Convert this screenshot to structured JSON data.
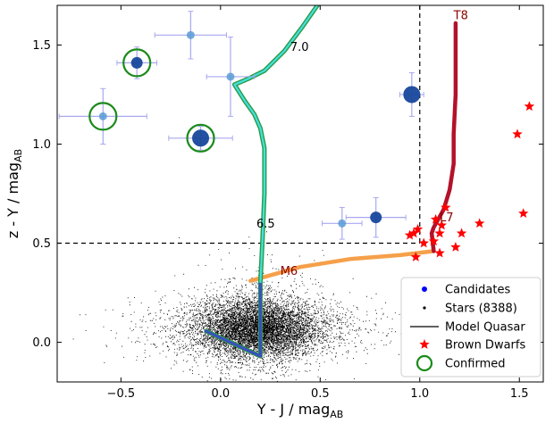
{
  "chart_data": {
    "type": "scatter",
    "title": "",
    "xlabel": "Y - J / mag",
    "xlabel_sub": "AB",
    "ylabel": "z - Y / mag",
    "ylabel_sub": "AB",
    "xlim": [
      -0.82,
      1.62
    ],
    "ylim": [
      -0.2,
      1.7
    ],
    "x_ticks": [
      -0.5,
      0.0,
      0.5,
      1.0,
      1.5
    ],
    "x_tick_labels": [
      "−0.5",
      "0.0",
      "0.5",
      "1.0",
      "1.5"
    ],
    "y_ticks": [
      0.0,
      0.5,
      1.0,
      1.5
    ],
    "y_tick_labels": [
      "0.0",
      "0.5",
      "1.0",
      "1.5"
    ],
    "grid": false,
    "legend_position": "bottom-right",
    "selection_cut": {
      "x": 1.0,
      "y": 0.5
    },
    "colors": {
      "candidate_light": "#5b9bd5",
      "candidate_dark": "#17479b",
      "candidate_error": "#a8a8f0",
      "confirmed_ring": "#1a8a1a",
      "brown_dwarf": "#ff0000",
      "stars": "#000000",
      "quasar_track_edge": "#2a9a4a",
      "quasar_track_fill": "#45e0dc",
      "quasar_track_low": "#3b4fc0",
      "brown_dwarf_track_late": "#b3122a",
      "brown_dwarf_track_early": "#f5a04a",
      "cut_line": "#000000"
    },
    "series": [
      {
        "name": "Candidates",
        "points": [
          {
            "x": -0.15,
            "y": 1.55,
            "xerr": 0.18,
            "yerr": 0.12,
            "size": "small",
            "confirmed": false
          },
          {
            "x": 0.05,
            "y": 1.34,
            "xerr": 0.12,
            "yerr": 0.2,
            "size": "small",
            "confirmed": false
          },
          {
            "x": -0.42,
            "y": 1.41,
            "xerr": 0.1,
            "yerr": 0.08,
            "size": "medium",
            "confirmed": true
          },
          {
            "x": -0.59,
            "y": 1.14,
            "xerr": 0.22,
            "yerr": 0.14,
            "size": "small",
            "confirmed": true
          },
          {
            "x": -0.1,
            "y": 1.03,
            "xerr": 0.16,
            "yerr": 0.06,
            "size": "large",
            "confirmed": true
          },
          {
            "x": 0.96,
            "y": 1.25,
            "xerr": 0.06,
            "yerr": 0.11,
            "size": "large",
            "confirmed": false
          },
          {
            "x": 0.78,
            "y": 0.63,
            "xerr": 0.15,
            "yerr": 0.1,
            "size": "medium",
            "confirmed": false
          },
          {
            "x": 0.61,
            "y": 0.6,
            "xerr": 0.1,
            "yerr": 0.08,
            "size": "small",
            "confirmed": false
          }
        ]
      },
      {
        "name": "Stars (8388)",
        "count": 8388,
        "distribution": {
          "x_center": 0.18,
          "y_center": 0.07
        }
      },
      {
        "name": "Model Quasar",
        "track": [
          {
            "x": -0.08,
            "y": 0.06
          },
          {
            "x": 0.2,
            "y": -0.07
          },
          {
            "x": 0.2,
            "y": 0.1
          },
          {
            "x": 0.2,
            "y": 0.3
          },
          {
            "x": 0.21,
            "y": 0.5
          },
          {
            "x": 0.22,
            "y": 0.75
          },
          {
            "x": 0.22,
            "y": 0.98
          },
          {
            "x": 0.2,
            "y": 1.08
          },
          {
            "x": 0.17,
            "y": 1.15
          },
          {
            "x": 0.12,
            "y": 1.22
          },
          {
            "x": 0.07,
            "y": 1.3
          },
          {
            "x": 0.14,
            "y": 1.33
          },
          {
            "x": 0.22,
            "y": 1.37
          },
          {
            "x": 0.32,
            "y": 1.47
          },
          {
            "x": 0.41,
            "y": 1.59
          },
          {
            "x": 0.5,
            "y": 1.72
          }
        ],
        "labels": [
          {
            "text": "7.0",
            "x": 0.35,
            "y": 1.47
          },
          {
            "text": "6.5",
            "x": 0.18,
            "y": 0.58
          }
        ]
      },
      {
        "name": "Brown Dwarfs",
        "points": [
          {
            "x": 1.55,
            "y": 1.19
          },
          {
            "x": 1.49,
            "y": 1.05
          },
          {
            "x": 1.52,
            "y": 0.65
          },
          {
            "x": 1.3,
            "y": 0.6
          },
          {
            "x": 1.21,
            "y": 0.55
          },
          {
            "x": 1.18,
            "y": 0.48
          },
          {
            "x": 1.13,
            "y": 0.68
          },
          {
            "x": 1.11,
            "y": 0.59
          },
          {
            "x": 1.08,
            "y": 0.62
          },
          {
            "x": 1.1,
            "y": 0.55
          },
          {
            "x": 1.07,
            "y": 0.51
          },
          {
            "x": 1.1,
            "y": 0.45
          },
          {
            "x": 0.97,
            "y": 0.55
          },
          {
            "x": 0.99,
            "y": 0.57
          },
          {
            "x": 1.02,
            "y": 0.5
          },
          {
            "x": 0.95,
            "y": 0.54
          },
          {
            "x": 0.98,
            "y": 0.43
          }
        ],
        "track": [
          {
            "x": 0.15,
            "y": 0.31
          },
          {
            "x": 0.4,
            "y": 0.38
          },
          {
            "x": 0.65,
            "y": 0.42
          },
          {
            "x": 0.9,
            "y": 0.44
          },
          {
            "x": 1.07,
            "y": 0.46
          },
          {
            "x": 1.06,
            "y": 0.55
          },
          {
            "x": 1.07,
            "y": 0.58
          },
          {
            "x": 1.12,
            "y": 0.67
          },
          {
            "x": 1.15,
            "y": 0.77
          },
          {
            "x": 1.17,
            "y": 0.9
          },
          {
            "x": 1.17,
            "y": 1.05
          },
          {
            "x": 1.18,
            "y": 1.25
          },
          {
            "x": 1.18,
            "y": 1.45
          },
          {
            "x": 1.18,
            "y": 1.61
          }
        ],
        "labels": [
          {
            "text": "M6",
            "x": 0.3,
            "y": 0.34
          },
          {
            "text": "L7",
            "x": 1.1,
            "y": 0.61
          },
          {
            "text": "T8",
            "x": 1.17,
            "y": 1.63
          }
        ]
      },
      {
        "name": "Confirmed"
      }
    ]
  }
}
